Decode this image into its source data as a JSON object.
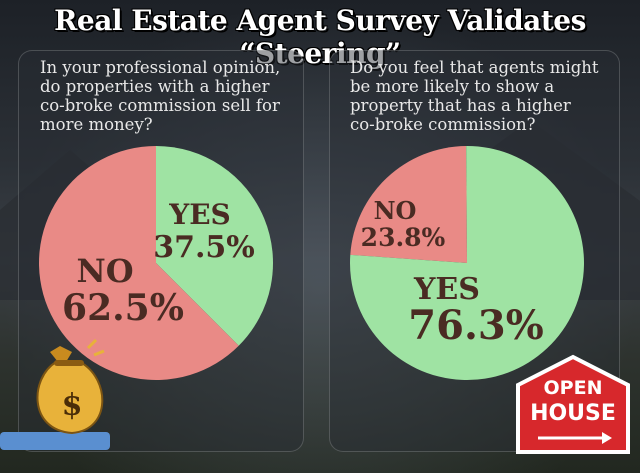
{
  "title": "Real Estate Agent Survey Validates “Steering”",
  "colors": {
    "yes": "#9fe3a3",
    "no": "#e98a86",
    "label": "#4a2b23",
    "white": "#ffffff"
  },
  "chart_data": [
    {
      "type": "pie",
      "title": "In your professional opinion, do properties with a higher co-broke commission sell for more money?",
      "categories": [
        "YES",
        "NO"
      ],
      "values": [
        37.5,
        62.5
      ],
      "value_labels": [
        "37.5%",
        "62.5%"
      ],
      "colors": [
        "#9fe3a3",
        "#e98a86"
      ]
    },
    {
      "type": "pie",
      "title": "Do you feel that agents might be more likely to show a property that has a higher co-broke commission?",
      "categories": [
        "NO",
        "YES"
      ],
      "values": [
        23.8,
        76.3
      ],
      "value_labels": [
        "23.8%",
        "76.3%"
      ],
      "colors": [
        "#e98a86",
        "#9fe3a3"
      ]
    }
  ],
  "icons": {
    "money_bag": "money-bag-icon",
    "open_house_sign": "open-house-sign-icon"
  },
  "money_symbol": "$",
  "sign": {
    "line1": "OPEN",
    "line2": "HOUSE"
  }
}
